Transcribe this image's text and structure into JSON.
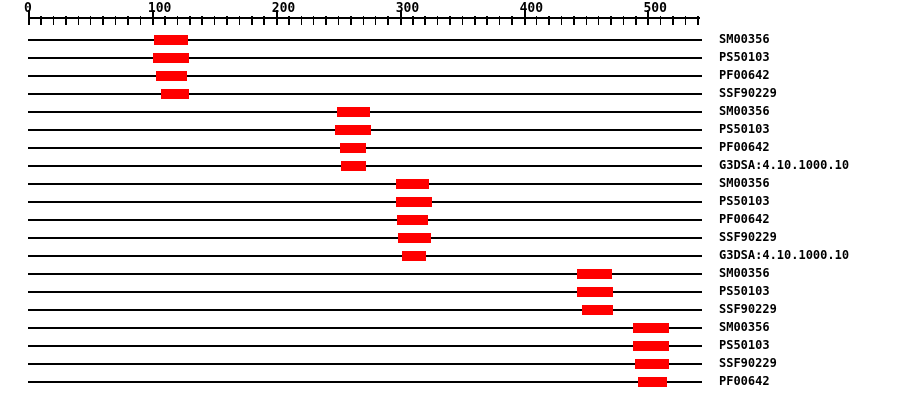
{
  "colors": {
    "background": "#ffffff",
    "axis": "#000000",
    "text": "#000000",
    "match": "#ff0000"
  },
  "chart_data": {
    "type": "bar",
    "subtype": "horizontal-range-domain-architecture",
    "title": "",
    "description": "Protein signature matches: one line per match with a red block spanning the matched region of the sequence",
    "axis": {
      "min": 0,
      "max": 544,
      "minor_tick_interval": 10,
      "major_tick_interval": 100,
      "last_tick": 540,
      "label_values": [
        "0",
        "100",
        "200",
        "300",
        "400",
        "500"
      ],
      "grid": false,
      "legend": false
    },
    "rows": [
      {
        "label": "SM00356",
        "start": 102,
        "end": 129
      },
      {
        "label": "PS50103",
        "start": 101,
        "end": 130
      },
      {
        "label": "PF00642",
        "start": 103,
        "end": 128
      },
      {
        "label": "SSF90229",
        "start": 107,
        "end": 130
      },
      {
        "label": "SM00356",
        "start": 249,
        "end": 276
      },
      {
        "label": "PS50103",
        "start": 248,
        "end": 277
      },
      {
        "label": "PF00642",
        "start": 252,
        "end": 273
      },
      {
        "label": "G3DSA:4.10.1000.10",
        "start": 253,
        "end": 273
      },
      {
        "label": "SM00356",
        "start": 297,
        "end": 324
      },
      {
        "label": "PS50103",
        "start": 297,
        "end": 326
      },
      {
        "label": "PF00642",
        "start": 298,
        "end": 323
      },
      {
        "label": "SSF90229",
        "start": 299,
        "end": 325
      },
      {
        "label": "G3DSA:4.10.1000.10",
        "start": 302,
        "end": 321
      },
      {
        "label": "SM00356",
        "start": 443,
        "end": 471
      },
      {
        "label": "PS50103",
        "start": 443,
        "end": 472
      },
      {
        "label": "SSF90229",
        "start": 447,
        "end": 472
      },
      {
        "label": "SM00356",
        "start": 488,
        "end": 517
      },
      {
        "label": "PS50103",
        "start": 488,
        "end": 517
      },
      {
        "label": "SSF90229",
        "start": 490,
        "end": 517
      },
      {
        "label": "PF00642",
        "start": 492,
        "end": 516
      }
    ]
  }
}
